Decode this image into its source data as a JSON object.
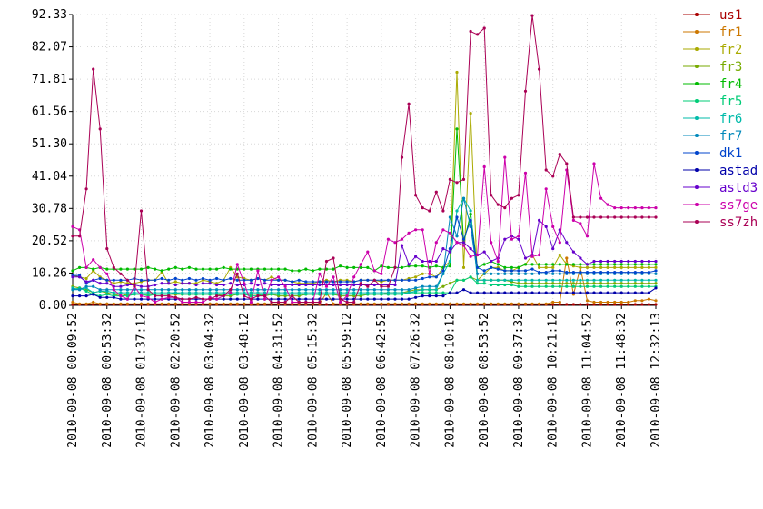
{
  "chart_data": {
    "type": "line",
    "title": "",
    "xlabel": "",
    "ylabel": "",
    "ylim": [
      0,
      92.33
    ],
    "y_ticks": [
      "0.00",
      "10.26",
      "20.52",
      "30.78",
      "41.04",
      "51.30",
      "61.56",
      "71.81",
      "82.07",
      "92.33"
    ],
    "x_ticks": [
      "2010-09-08 00:09:52",
      "2010-09-08 00:53:32",
      "2010-09-08 01:37:12",
      "2010-09-08 02:20:52",
      "2010-09-08 03:04:32",
      "2010-09-08 03:48:12",
      "2010-09-08 04:31:52",
      "2010-09-08 05:15:32",
      "2010-09-08 05:59:12",
      "2010-09-08 06:42:52",
      "2010-09-08 07:26:32",
      "2010-09-08 08:10:12",
      "2010-09-08 08:53:52",
      "2010-09-08 09:37:32",
      "2010-09-08 10:21:12",
      "2010-09-08 11:04:52",
      "2010-09-08 11:48:32",
      "2010-09-08 12:32:13"
    ],
    "grid": true,
    "legend_position": "right",
    "series": [
      {
        "name": "us1",
        "color": "#aa0000",
        "values": [
          0.3,
          0.3,
          0.3,
          0.3,
          0.3,
          0.3,
          0.3,
          0.3,
          0.3,
          0.3,
          0.3,
          0.3,
          0.3,
          0.3,
          0.3,
          0.3,
          0.3,
          0.3,
          0.3,
          0.3,
          0.3,
          0.3,
          0.3,
          0.3,
          0.3,
          0.3,
          0.3,
          0.3,
          0.3,
          0.3,
          0.3,
          0.3,
          0.3,
          0.3,
          0.3,
          0.3,
          0.3,
          0.3,
          0.3,
          0.3,
          0.3,
          0.3,
          0.3,
          0.3,
          0.3,
          0.3,
          0.3,
          0.3,
          0.3,
          0.3,
          0.3,
          0.3,
          0.3,
          0.3,
          0.3,
          0.3,
          0.3,
          0.3,
          0.3,
          0.3,
          0.3,
          0.3,
          0.3,
          0.3,
          0.3,
          0.3,
          0.3,
          0.3,
          0.3,
          0.3,
          0.3,
          0.3,
          0.3,
          0.3,
          0.3,
          0.3,
          0.3,
          0.3,
          0.3,
          0.3,
          0.3,
          0.3,
          0.3,
          0.3,
          0.3,
          0.3
        ]
      },
      {
        "name": "fr1",
        "color": "#cc7700",
        "values": [
          1.0,
          0.5,
          0.5,
          1.0,
          0.5,
          0.5,
          0.5,
          0.5,
          0.5,
          0.5,
          0.5,
          0.5,
          0.5,
          0.5,
          0.5,
          0.5,
          0.5,
          0.5,
          0.5,
          0.5,
          0.5,
          0.5,
          0.5,
          0.5,
          0.5,
          0.5,
          0.5,
          0.5,
          0.5,
          0.5,
          0.5,
          0.5,
          0.5,
          0.5,
          0.5,
          0.5,
          0.5,
          4.0,
          0.5,
          0.5,
          0.5,
          0.5,
          0.5,
          0.5,
          0.5,
          0.5,
          0.5,
          0.5,
          0.5,
          0.5,
          0.5,
          0.5,
          0.5,
          0.5,
          0.5,
          0.5,
          0.5,
          0.5,
          0.5,
          0.5,
          0.5,
          0.5,
          0.5,
          0.5,
          0.5,
          0.5,
          0.5,
          0.5,
          0.5,
          0.5,
          1.0,
          1.0,
          15.0,
          3.5,
          12.0,
          1.5,
          1.0,
          1.0,
          1.0,
          1.0,
          1.0,
          1.0,
          1.5,
          1.5,
          2.0,
          1.5
        ]
      },
      {
        "name": "fr2",
        "color": "#aaaa00",
        "values": [
          9.5,
          9.0,
          8.5,
          11.0,
          9.0,
          8.0,
          7.0,
          7.5,
          7.0,
          7.0,
          7.5,
          8.0,
          8.0,
          10.5,
          7.0,
          7.5,
          7.0,
          7.0,
          7.0,
          8.0,
          7.5,
          7.0,
          8.0,
          12.0,
          9.0,
          8.5,
          8.0,
          8.5,
          8.0,
          9.0,
          8.0,
          8.0,
          7.5,
          7.0,
          7.0,
          7.0,
          7.5,
          8.0,
          7.5,
          8.0,
          8.0,
          7.5,
          8.0,
          8.0,
          8.0,
          7.5,
          8.0,
          8.0,
          8.0,
          8.5,
          9.0,
          10.0,
          10.0,
          9.0,
          12.0,
          14.0,
          74.0,
          12.0,
          61.0,
          8.0,
          10.0,
          12.0,
          12.0,
          11.0,
          11.0,
          12.0,
          13.0,
          16.0,
          12.0,
          12.0,
          12.0,
          16.0,
          13.0,
          12.5,
          12.0,
          12.0,
          12.0,
          12.0,
          12.0,
          12.0,
          12.0,
          12.0,
          12.0,
          12.0,
          12.0,
          12.0
        ]
      },
      {
        "name": "fr3",
        "color": "#77aa00",
        "values": [
          6.0,
          5.5,
          5.0,
          4.0,
          4.5,
          4.0,
          3.5,
          3.0,
          3.5,
          3.5,
          3.5,
          3.5,
          3.5,
          3.5,
          3.5,
          3.5,
          3.5,
          3.5,
          3.5,
          3.5,
          3.5,
          3.5,
          3.0,
          3.0,
          3.5,
          3.5,
          3.5,
          3.5,
          3.0,
          3.5,
          3.0,
          3.0,
          3.0,
          3.0,
          3.5,
          3.5,
          3.5,
          3.5,
          3.5,
          3.0,
          3.0,
          3.0,
          3.0,
          3.5,
          3.5,
          3.5,
          4.0,
          4.0,
          4.0,
          4.5,
          5.0,
          5.0,
          5.0,
          5.0,
          6.0,
          7.0,
          8.0,
          8.0,
          9.0,
          8.0,
          8.0,
          8.0,
          8.0,
          8.0,
          7.5,
          7.0,
          7.0,
          7.0,
          7.0,
          7.0,
          7.0,
          7.0,
          7.0,
          7.0,
          7.0,
          7.0,
          7.0,
          7.0,
          7.0,
          7.0,
          7.0,
          7.0,
          7.0,
          7.0,
          7.0,
          7.0
        ]
      },
      {
        "name": "fr4",
        "color": "#00bb00",
        "values": [
          11.0,
          12.0,
          12.0,
          11.5,
          12.0,
          11.5,
          11.5,
          11.5,
          11.5,
          11.5,
          11.5,
          12.0,
          11.5,
          11.0,
          11.5,
          12.0,
          11.5,
          12.0,
          11.5,
          11.5,
          11.5,
          11.5,
          12.0,
          11.5,
          11.5,
          11.5,
          11.5,
          11.5,
          11.5,
          11.5,
          11.5,
          11.5,
          11.0,
          11.0,
          11.5,
          11.0,
          11.5,
          11.5,
          11.5,
          12.5,
          12.0,
          12.0,
          12.0,
          12.0,
          11.0,
          12.5,
          12.0,
          12.0,
          12.0,
          12.5,
          12.5,
          12.5,
          12.0,
          12.5,
          12.0,
          12.5,
          56.0,
          20.0,
          29.0,
          12.0,
          13.0,
          14.0,
          13.0,
          12.0,
          12.0,
          12.0,
          13.0,
          13.0,
          13.0,
          13.0,
          13.0,
          13.0,
          13.0,
          13.0,
          13.0,
          13.0,
          13.0,
          13.0,
          13.0,
          13.0,
          13.0,
          13.0,
          13.0,
          13.0,
          13.0,
          13.0
        ]
      },
      {
        "name": "fr5",
        "color": "#00cc77",
        "values": [
          5.0,
          5.5,
          4.5,
          3.5,
          3.0,
          3.5,
          3.0,
          3.0,
          3.0,
          3.5,
          3.5,
          3.0,
          3.5,
          3.5,
          3.5,
          4.0,
          3.5,
          3.5,
          3.5,
          3.5,
          3.5,
          3.5,
          3.5,
          3.5,
          3.5,
          3.5,
          3.0,
          3.0,
          3.5,
          3.5,
          3.5,
          3.5,
          3.5,
          3.5,
          3.5,
          3.5,
          3.5,
          3.5,
          3.5,
          3.5,
          3.5,
          3.5,
          3.5,
          3.5,
          3.5,
          3.5,
          3.5,
          3.5,
          3.5,
          4.0,
          4.0,
          4.0,
          4.0,
          4.0,
          4.0,
          4.0,
          8.0,
          8.0,
          9.0,
          7.0,
          7.0,
          6.5,
          6.5,
          6.5,
          6.5,
          6.0,
          6.0,
          6.0,
          6.0,
          6.0,
          6.0,
          6.0,
          6.0,
          6.0,
          6.0,
          6.0,
          6.0,
          6.0,
          6.0,
          6.0,
          6.0,
          6.0,
          6.0,
          6.0,
          6.0,
          6.0
        ]
      },
      {
        "name": "fr6",
        "color": "#00bbaa",
        "values": [
          5.5,
          5.0,
          5.5,
          4.0,
          4.5,
          4.5,
          4.0,
          4.0,
          4.0,
          4.0,
          4.0,
          4.0,
          4.0,
          4.0,
          4.0,
          4.0,
          4.0,
          4.0,
          4.0,
          4.0,
          4.0,
          4.0,
          4.0,
          4.0,
          4.0,
          4.0,
          4.0,
          4.0,
          4.0,
          4.0,
          4.0,
          4.0,
          4.0,
          4.0,
          4.0,
          4.0,
          4.0,
          4.0,
          4.0,
          4.0,
          4.0,
          4.0,
          4.0,
          4.0,
          4.0,
          4.0,
          4.0,
          4.0,
          4.0,
          4.0,
          4.5,
          5.0,
          5.0,
          5.0,
          10.0,
          14.0,
          30.0,
          34.0,
          30.0,
          8.0,
          8.0,
          8.0,
          8.0,
          8.0,
          8.0,
          8.0,
          8.0,
          8.0,
          8.0,
          8.0,
          8.0,
          8.0,
          8.0,
          8.0,
          8.0,
          8.0,
          8.0,
          8.0,
          8.0,
          8.0,
          8.0,
          8.0,
          8.0,
          8.0,
          8.0,
          8.0
        ]
      },
      {
        "name": "fr7",
        "color": "#0088bb",
        "values": [
          5.0,
          5.0,
          6.0,
          6.0,
          5.0,
          5.0,
          5.0,
          5.0,
          5.0,
          5.0,
          5.0,
          5.0,
          5.0,
          5.0,
          5.0,
          5.0,
          5.0,
          5.0,
          5.0,
          5.0,
          5.0,
          5.0,
          5.0,
          5.0,
          5.0,
          5.0,
          5.0,
          5.0,
          5.0,
          5.0,
          5.0,
          5.0,
          5.0,
          5.0,
          5.0,
          5.0,
          5.0,
          5.0,
          5.0,
          5.0,
          5.0,
          5.0,
          5.0,
          5.0,
          5.0,
          5.0,
          5.0,
          5.0,
          5.0,
          5.0,
          5.5,
          6.0,
          6.0,
          6.0,
          10.0,
          28.0,
          22.0,
          34.0,
          25.0,
          10.0,
          10.0,
          10.0,
          10.0,
          10.0,
          10.0,
          10.0,
          10.0,
          10.0,
          10.0,
          10.0,
          10.0,
          10.0,
          10.0,
          10.0,
          10.0,
          10.0,
          10.0,
          10.0,
          10.0,
          10.0,
          10.0,
          10.0,
          10.0,
          10.0,
          10.0,
          10.0
        ]
      },
      {
        "name": "dk1",
        "color": "#0044cc",
        "values": [
          9.5,
          9.5,
          7.0,
          8.0,
          8.5,
          8.0,
          8.0,
          8.0,
          8.0,
          8.5,
          8.0,
          8.0,
          8.0,
          8.5,
          8.0,
          8.5,
          8.0,
          8.5,
          8.0,
          8.5,
          8.0,
          8.5,
          8.0,
          8.5,
          8.0,
          8.0,
          8.0,
          8.5,
          8.0,
          8.0,
          8.0,
          8.0,
          7.5,
          8.0,
          7.5,
          7.5,
          7.5,
          7.5,
          7.5,
          7.5,
          7.5,
          7.5,
          8.0,
          8.0,
          8.0,
          8.0,
          8.0,
          8.0,
          8.0,
          8.0,
          8.0,
          8.5,
          9.0,
          9.0,
          11.0,
          18.0,
          28.0,
          21.0,
          27.0,
          12.0,
          11.0,
          12.0,
          11.5,
          11.0,
          11.0,
          11.0,
          11.0,
          11.5,
          10.5,
          10.5,
          11.0,
          11.0,
          10.5,
          10.5,
          10.5,
          10.5,
          10.5,
          10.5,
          10.5,
          10.5,
          10.5,
          10.5,
          10.5,
          10.5,
          10.5,
          11.0
        ]
      },
      {
        "name": "astad",
        "color": "#0000aa",
        "values": [
          3.0,
          3.0,
          3.0,
          3.5,
          2.5,
          2.5,
          2.5,
          2.0,
          2.0,
          2.0,
          2.0,
          2.0,
          2.0,
          2.0,
          2.0,
          2.0,
          2.0,
          2.0,
          2.0,
          2.0,
          2.0,
          2.0,
          2.0,
          2.0,
          2.0,
          2.0,
          2.0,
          2.0,
          2.0,
          2.0,
          2.0,
          2.0,
          2.0,
          2.0,
          2.0,
          2.0,
          2.0,
          2.0,
          2.0,
          2.0,
          2.0,
          2.0,
          2.0,
          2.0,
          2.0,
          2.0,
          2.0,
          2.0,
          2.0,
          2.0,
          2.5,
          3.0,
          3.0,
          3.0,
          3.0,
          4.0,
          4.0,
          5.0,
          4.0,
          4.0,
          4.0,
          4.0,
          4.0,
          4.0,
          4.0,
          4.0,
          4.0,
          4.0,
          4.0,
          4.0,
          4.0,
          4.0,
          4.0,
          4.0,
          4.0,
          4.0,
          4.0,
          4.0,
          4.0,
          4.0,
          4.0,
          4.0,
          4.0,
          4.0,
          4.0,
          5.5
        ]
      },
      {
        "name": "astd3",
        "color": "#6600cc",
        "values": [
          9.0,
          9.0,
          7.5,
          8.0,
          7.0,
          7.0,
          6.0,
          6.0,
          6.5,
          6.5,
          6.0,
          6.0,
          6.5,
          7.0,
          7.0,
          6.5,
          7.0,
          7.0,
          6.5,
          7.0,
          7.0,
          6.5,
          6.5,
          7.0,
          6.5,
          6.5,
          7.0,
          6.5,
          7.0,
          6.5,
          6.5,
          6.5,
          6.5,
          6.5,
          6.5,
          6.5,
          6.5,
          6.5,
          6.5,
          6.5,
          6.5,
          6.5,
          6.5,
          6.5,
          6.5,
          6.5,
          6.5,
          6.5,
          19.0,
          13.0,
          15.5,
          14.0,
          14.0,
          14.0,
          18.0,
          17.0,
          20.0,
          20.0,
          18.0,
          16.0,
          17.0,
          14.0,
          15.0,
          21.0,
          22.0,
          21.0,
          15.0,
          16.0,
          27.0,
          25.0,
          18.0,
          24.0,
          20.0,
          17.0,
          15.0,
          13.0,
          14.0,
          14.0,
          14.0,
          14.0,
          14.0,
          14.0,
          14.0,
          14.0,
          14.0,
          14.0
        ]
      },
      {
        "name": "ss7ge",
        "color": "#cc00aa",
        "values": [
          25.0,
          24.0,
          12.0,
          14.5,
          12.0,
          10.0,
          5.0,
          3.0,
          2.0,
          6.0,
          3.0,
          2.5,
          1.0,
          2.0,
          2.5,
          2.5,
          1.0,
          1.0,
          1.0,
          1.0,
          2.5,
          2.0,
          3.0,
          4.0,
          13.0,
          7.0,
          1.0,
          11.0,
          2.0,
          8.0,
          9.0,
          6.0,
          1.0,
          1.0,
          1.0,
          1.0,
          10.0,
          6.0,
          9.0,
          1.0,
          3.0,
          9.0,
          13.0,
          17.0,
          11.0,
          10.0,
          21.0,
          20.0,
          21.0,
          23.0,
          24.0,
          24.0,
          10.0,
          20.0,
          24.0,
          23.0,
          20.0,
          19.0,
          15.5,
          16.0,
          44.0,
          20.0,
          14.0,
          47.0,
          21.0,
          22.0,
          42.0,
          15.5,
          16.0,
          37.0,
          25.0,
          20.0,
          43.0,
          27.0,
          26.0,
          22.0,
          45.0,
          34.0,
          32.0,
          31.0,
          31.0,
          31.0,
          31.0,
          31.0,
          31.0,
          31.0
        ]
      },
      {
        "name": "ss7zh",
        "color": "#aa0055",
        "values": [
          22.0,
          22.0,
          37.0,
          75.0,
          56.0,
          18.0,
          12.0,
          10.0,
          8.0,
          6.0,
          30.0,
          5.0,
          3.0,
          3.0,
          3.0,
          2.5,
          2.0,
          2.0,
          2.5,
          2.0,
          2.0,
          3.0,
          3.0,
          5.0,
          10.0,
          3.0,
          2.0,
          3.0,
          3.0,
          1.0,
          1.0,
          1.0,
          3.0,
          1.0,
          1.0,
          1.0,
          1.0,
          14.0,
          15.0,
          2.0,
          1.0,
          1.0,
          7.0,
          6.0,
          8.0,
          6.0,
          6.0,
          12.0,
          47.0,
          64.0,
          35.0,
          31.0,
          30.0,
          36.0,
          30.0,
          40.0,
          39.0,
          40.0,
          87.0,
          86.0,
          88.0,
          35.0,
          32.0,
          31.0,
          34.0,
          35.0,
          68.0,
          92.0,
          75.0,
          43.0,
          41.0,
          48.0,
          45.0,
          28.0,
          28.0,
          28.0,
          28.0,
          28.0,
          28.0,
          28.0,
          28.0,
          28.0,
          28.0,
          28.0,
          28.0,
          28.0
        ]
      }
    ]
  }
}
